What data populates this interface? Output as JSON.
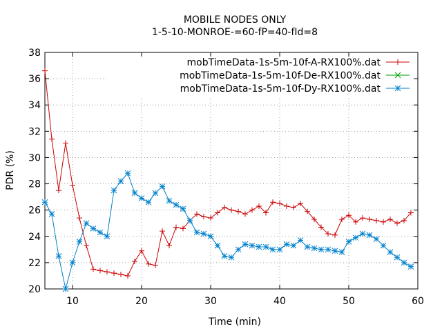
{
  "chart_data": {
    "type": "line",
    "title": "MOBILE NODES ONLY",
    "subtitle": "1-5-10-MONROE-=60-fP=40-fId=8",
    "xlabel": "Time (min)",
    "ylabel": "PDR (%)",
    "xlim": [
      6,
      60
    ],
    "ylim": [
      20,
      38
    ],
    "xticks": [
      10,
      20,
      30,
      40,
      50,
      60
    ],
    "yticks": [
      20,
      22,
      24,
      26,
      28,
      30,
      32,
      34,
      36,
      38
    ],
    "grid": true,
    "legend_position": "top-right",
    "series": [
      {
        "name": "mobTimeData-1s-5m-10f-A-RX100%.dat",
        "color": "#cc0000",
        "marker": "plus",
        "x": [
          6,
          7,
          8,
          9,
          10,
          11,
          12,
          13,
          14,
          15,
          16,
          17,
          18,
          19,
          20,
          21,
          22,
          23,
          24,
          25,
          26,
          27,
          28,
          29,
          30,
          31,
          32,
          33,
          34,
          35,
          36,
          37,
          38,
          39,
          40,
          41,
          42,
          43,
          44,
          45,
          46,
          47,
          48,
          49,
          50,
          51,
          52,
          53,
          54,
          55,
          56,
          57,
          58,
          59
        ],
        "y": [
          36.6,
          31.4,
          27.5,
          31.1,
          27.9,
          25.4,
          23.3,
          21.5,
          21.4,
          21.3,
          21.2,
          21.1,
          21.0,
          22.1,
          22.9,
          21.9,
          21.8,
          24.4,
          23.3,
          24.7,
          24.6,
          25.2,
          25.7,
          25.5,
          25.4,
          25.8,
          26.2,
          26.0,
          25.9,
          25.7,
          26.0,
          26.3,
          25.8,
          26.6,
          26.5,
          26.3,
          26.2,
          26.5,
          25.9,
          25.3,
          24.7,
          24.2,
          24.1,
          25.3,
          25.6,
          25.1,
          25.4,
          25.3,
          25.2,
          25.1,
          25.3,
          25.0,
          25.2,
          25.8
        ]
      },
      {
        "name": "mobTimeData-1s-5m-10f-De-RX100%.dat",
        "color": "#00a000",
        "marker": "x",
        "x": [],
        "y": []
      },
      {
        "name": "mobTimeData-1s-5m-10f-Dy-RX100%.dat",
        "color": "#0080cc",
        "marker": "star",
        "x": [
          6,
          7,
          8,
          9,
          10,
          11,
          12,
          13,
          14,
          15,
          16,
          17,
          18,
          19,
          20,
          21,
          22,
          23,
          24,
          25,
          26,
          27,
          28,
          29,
          30,
          31,
          32,
          33,
          34,
          35,
          36,
          37,
          38,
          39,
          40,
          41,
          42,
          43,
          44,
          45,
          46,
          47,
          48,
          49,
          50,
          51,
          52,
          53,
          54,
          55,
          56,
          57,
          58,
          59
        ],
        "y": [
          26.6,
          25.7,
          22.5,
          20.0,
          22.0,
          23.6,
          25.0,
          24.6,
          24.3,
          24.0,
          27.5,
          28.2,
          28.8,
          27.3,
          26.9,
          26.6,
          27.3,
          27.8,
          26.7,
          26.4,
          26.1,
          25.2,
          24.3,
          24.2,
          24.0,
          23.3,
          22.5,
          22.4,
          23.0,
          23.4,
          23.3,
          23.2,
          23.2,
          23.0,
          23.0,
          23.4,
          23.3,
          23.7,
          23.2,
          23.1,
          23.0,
          23.0,
          22.9,
          22.8,
          23.6,
          23.9,
          24.2,
          24.1,
          23.8,
          23.3,
          22.8,
          22.4,
          22.0,
          21.7
        ]
      }
    ]
  }
}
